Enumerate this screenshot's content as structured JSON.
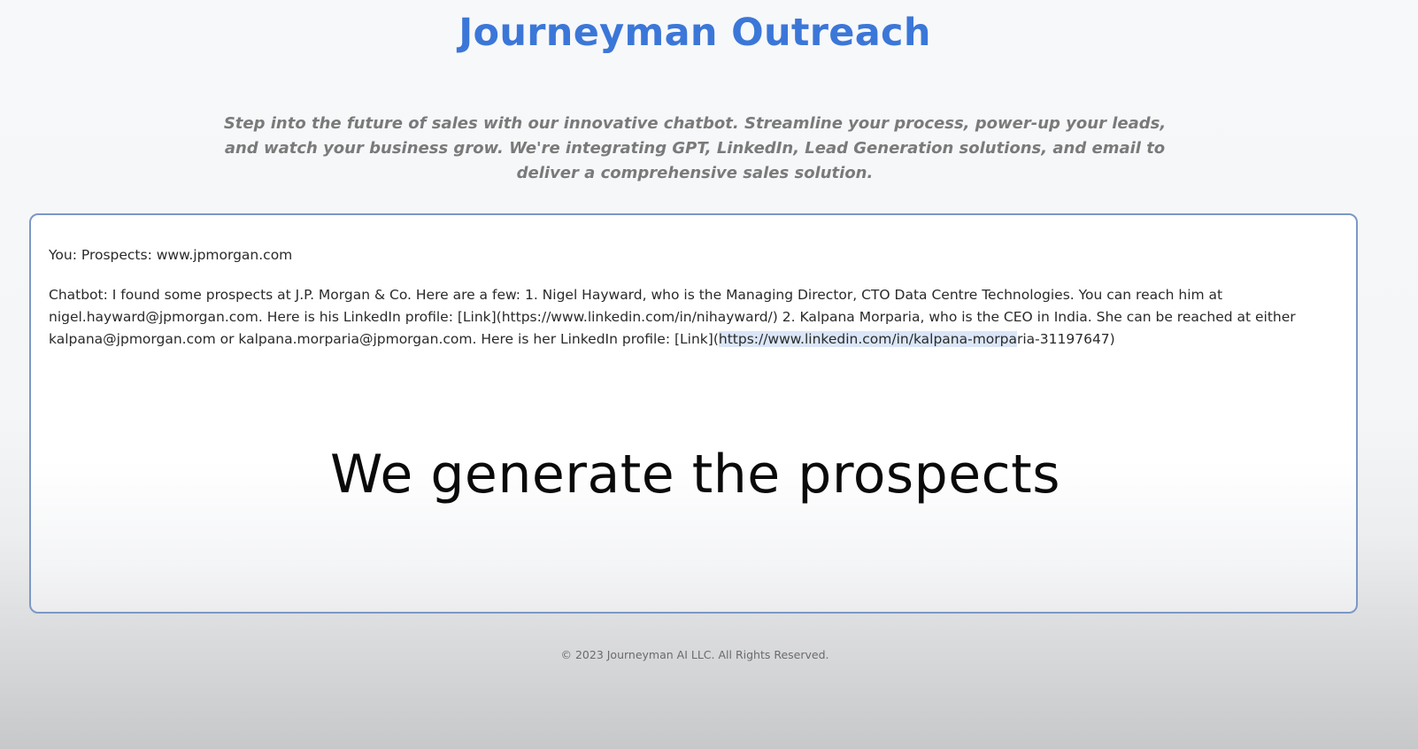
{
  "header": {
    "title": "Journeyman Outreach",
    "tagline": "Step into the future of sales with our innovative chatbot. Streamline your process, power-up your leads, and watch your business grow. We're integrating GPT, LinkedIn, Lead Generation solutions, and email to deliver a comprehensive sales solution."
  },
  "chat": {
    "messages": [
      {
        "role": "user",
        "text": "You: Prospects: www.jpmorgan.com"
      },
      {
        "role": "bot",
        "text_before_highlight": "Chatbot: I found some prospects at J.P. Morgan & Co. Here are a few: 1. Nigel Hayward, who is the Managing Director, CTO Data Centre Technologies. You can reach him at nigel.hayward@jpmorgan.com. Here is his LinkedIn profile: [Link](https://www.linkedin.com/in/nihayward/) 2. Kalpana Morparia, who is the CEO in India. She can be reached at either kalpana@jpmorgan.com or kalpana.morparia@jpmorgan.com. Here is her LinkedIn profile: [Link](",
        "text_highlight": "https://www.linkedin.com/in/kalpana-morpa",
        "text_after_highlight": "ria-31197647)"
      }
    ]
  },
  "overlay_caption": "We generate the prospects",
  "footer": {
    "copyright": "© 2023 Journeyman AI LLC. All Rights Reserved."
  },
  "colors": {
    "brand": "#3b77d8",
    "panel_border": "#7c98c6",
    "selection_highlight": "#dbe6f7"
  }
}
